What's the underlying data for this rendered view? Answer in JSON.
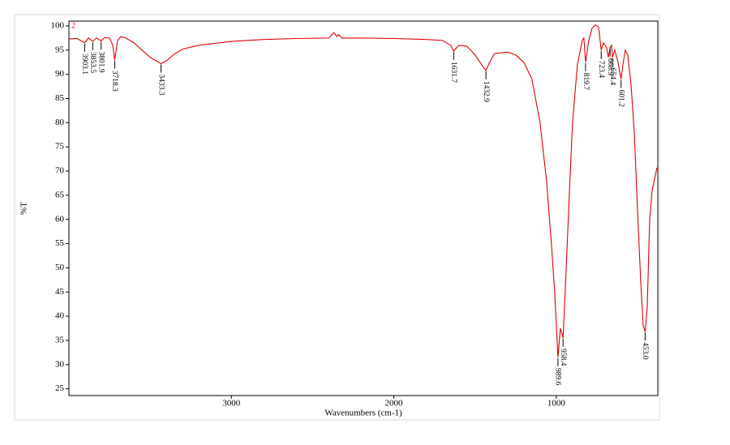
{
  "chart_data": {
    "type": "line",
    "x_label": "Wavenumbers (cm-1)",
    "y_label": "%T",
    "xlim": [
      4000,
      375
    ],
    "ylim": [
      23.6,
      101
    ],
    "reverse_x": true,
    "xticks": [
      3000,
      2000,
      1000
    ],
    "yticks": [
      25,
      30,
      35,
      40,
      45,
      50,
      55,
      60,
      65,
      70,
      75,
      80,
      85,
      90,
      95,
      100
    ],
    "x": [
      4000,
      3950,
      3903.1,
      3880,
      3853.5,
      3830,
      3801.9,
      3780,
      3750,
      3730,
      3718.3,
      3700,
      3680,
      3650,
      3600,
      3550,
      3500,
      3433.3,
      3400,
      3350,
      3300,
      3200,
      3000,
      2800,
      2600,
      2400,
      2370,
      2350,
      2340,
      2320,
      2200,
      2000,
      1800,
      1700,
      1650,
      1631.7,
      1600,
      1550,
      1500,
      1450,
      1432.9,
      1410,
      1380,
      1300,
      1250,
      1200,
      1150,
      1100,
      1060,
      1030,
      1010,
      989.6,
      975,
      958.4,
      945,
      920,
      900,
      870,
      840,
      830,
      819.7,
      800,
      780,
      760,
      740,
      730,
      723.4,
      710,
      690,
      680,
      668.9,
      660,
      654.4,
      640,
      620,
      601.2,
      590,
      575,
      560,
      540,
      520,
      500,
      480,
      465,
      453.0,
      440,
      425,
      410,
      380
    ],
    "series": [
      {
        "name": "2",
        "color": "#e00000",
        "values": [
          97.3,
          97.4,
          96.5,
          97.5,
          96.8,
          97.5,
          96.9,
          97.6,
          97.5,
          96,
          93,
          97,
          97.8,
          97.5,
          96.5,
          95,
          93.5,
          92.2,
          92.8,
          94.2,
          95.2,
          96,
          96.8,
          97.2,
          97.4,
          97.5,
          98.6,
          97.8,
          98.2,
          97.5,
          97.5,
          97.4,
          97.2,
          97,
          96,
          94.8,
          96,
          95.8,
          94,
          91.5,
          90.8,
          92.5,
          94.3,
          94.6,
          94,
          92.5,
          89,
          80,
          68,
          55,
          45,
          31.5,
          37.5,
          35.5,
          45,
          65,
          80,
          92,
          97,
          97.5,
          92.5,
          97,
          99.5,
          100.2,
          99.8,
          97,
          95,
          96.5,
          95.5,
          93.5,
          95.5,
          96,
          93.5,
          95,
          92.5,
          89,
          92,
          95,
          94,
          88,
          78,
          62,
          47,
          38,
          36.8,
          42,
          60,
          66,
          70.7
        ]
      }
    ],
    "peaks": {
      "x": [
        3903.1,
        3853.5,
        3801.9,
        3718.3,
        3433.3,
        1631.7,
        1432.9,
        989.6,
        958.4,
        819.7,
        723.4,
        668.9,
        654.4,
        601.2,
        453.0
      ],
      "labels": [
        "3903.1",
        "3853.5",
        "3801.9",
        "3718.3",
        "3433.3",
        "1631.7",
        "1432.9",
        "989.6",
        "958.4",
        "819.7",
        "723.4",
        "668.9",
        "654.4",
        "601.2",
        "453.0"
      ]
    }
  }
}
